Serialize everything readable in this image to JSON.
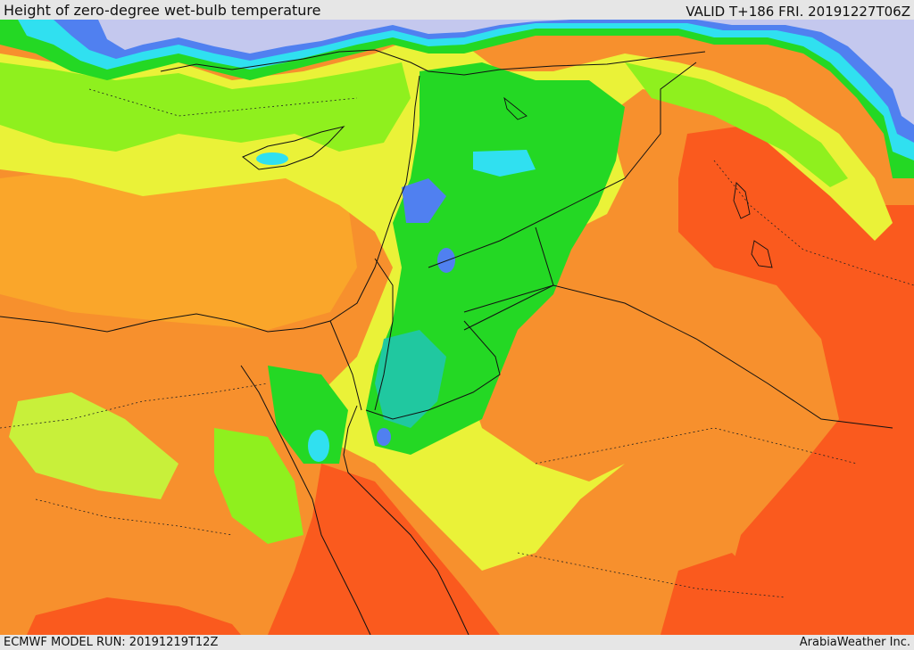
{
  "header": {
    "title": "Height of zero-degree wet-bulb temperature",
    "valid": "VALID T+186 FRI. 20191227T06Z"
  },
  "footer": {
    "model_run": "ECMWF MODEL RUN: 20191219T12Z",
    "credit": "ArabiaWeather Inc."
  },
  "palette": {
    "red": "#fa5a1e",
    "orange": "#f7902d",
    "light_orange": "#faa62a",
    "yellow": "#eaf238",
    "yellow_green": "#c8f03a",
    "lime": "#8ff01e",
    "green": "#24d824",
    "teal": "#20c8a0",
    "cyan": "#30e0f0",
    "blue": "#5080f0",
    "lavender": "#c4c8ee"
  }
}
